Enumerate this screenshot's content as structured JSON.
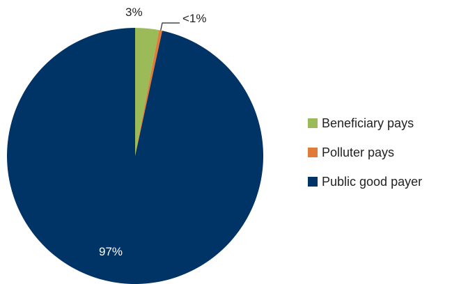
{
  "chart_data": {
    "type": "pie",
    "title": "",
    "categories": [
      "Beneficiary pays",
      "Polluter pays",
      "Public good payer"
    ],
    "values": [
      3,
      0.4,
      96.6
    ],
    "data_labels": [
      "3%",
      "<1%",
      "97%"
    ],
    "colors": [
      "#9bbb59",
      "#e07b39",
      "#003366"
    ],
    "start_angle_deg": 0,
    "direction": "clockwise",
    "legend_position": "right"
  }
}
